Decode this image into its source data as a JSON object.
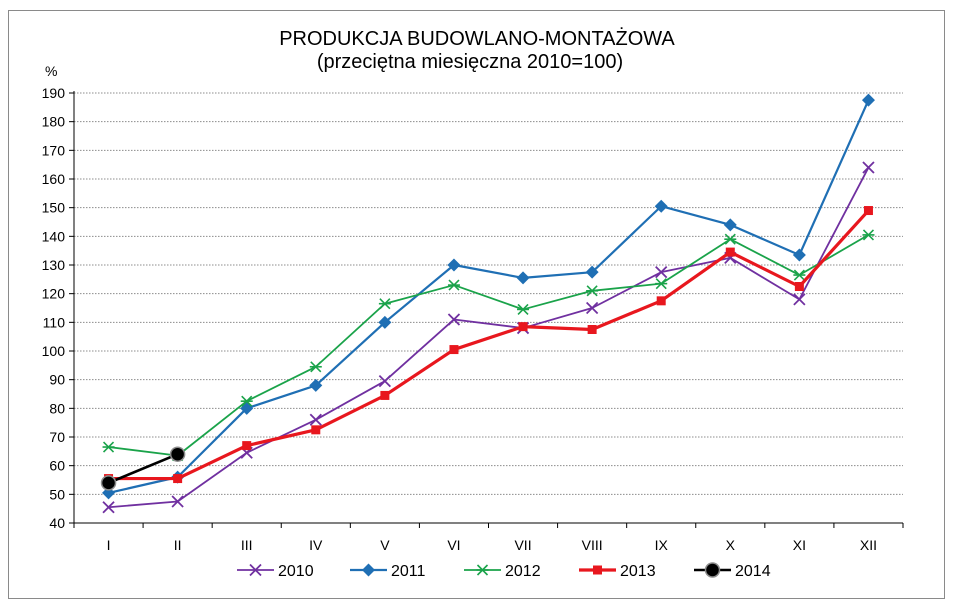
{
  "chart_data": {
    "type": "line",
    "title": "PRODUKCJA BUDOWLANO-MONTAŻOWA",
    "subtitle": "(przeciętna miesięczna 2010=100)",
    "ylabel": "%",
    "xlabel": "",
    "ylim": [
      40,
      190
    ],
    "ytick_step": 10,
    "grid": true,
    "legend_position": "bottom",
    "categories": [
      "I",
      "II",
      "III",
      "IV",
      "V",
      "VI",
      "VII",
      "VIII",
      "IX",
      "X",
      "XI",
      "XII"
    ],
    "series": [
      {
        "name": "2010",
        "color": "#7030a0",
        "marker": "x",
        "values": [
          45.5,
          47.5,
          64.5,
          76,
          89.5,
          111,
          108,
          115,
          127.5,
          132.5,
          118,
          164
        ]
      },
      {
        "name": "2011",
        "color": "#1f6fb4",
        "marker": "diamond",
        "values": [
          50.5,
          56,
          80,
          88,
          110,
          130,
          125.5,
          127.5,
          150.5,
          144,
          133.5,
          187.5
        ]
      },
      {
        "name": "2012",
        "color": "#1aa34a",
        "marker": "asterisk",
        "values": [
          66.5,
          63.5,
          82.5,
          94.5,
          116.5,
          123,
          114.5,
          121,
          123.5,
          139,
          126.5,
          140.5
        ]
      },
      {
        "name": "2013",
        "color": "#e8171e",
        "marker": "square",
        "values": [
          55.5,
          55.5,
          67,
          72.5,
          84.5,
          100.5,
          108.5,
          107.5,
          117.5,
          134.5,
          122.5,
          149
        ]
      },
      {
        "name": "2014",
        "color": "#000000",
        "marker": "circle",
        "values": [
          54,
          64,
          null,
          null,
          null,
          null,
          null,
          null,
          null,
          null,
          null,
          null
        ]
      }
    ]
  }
}
